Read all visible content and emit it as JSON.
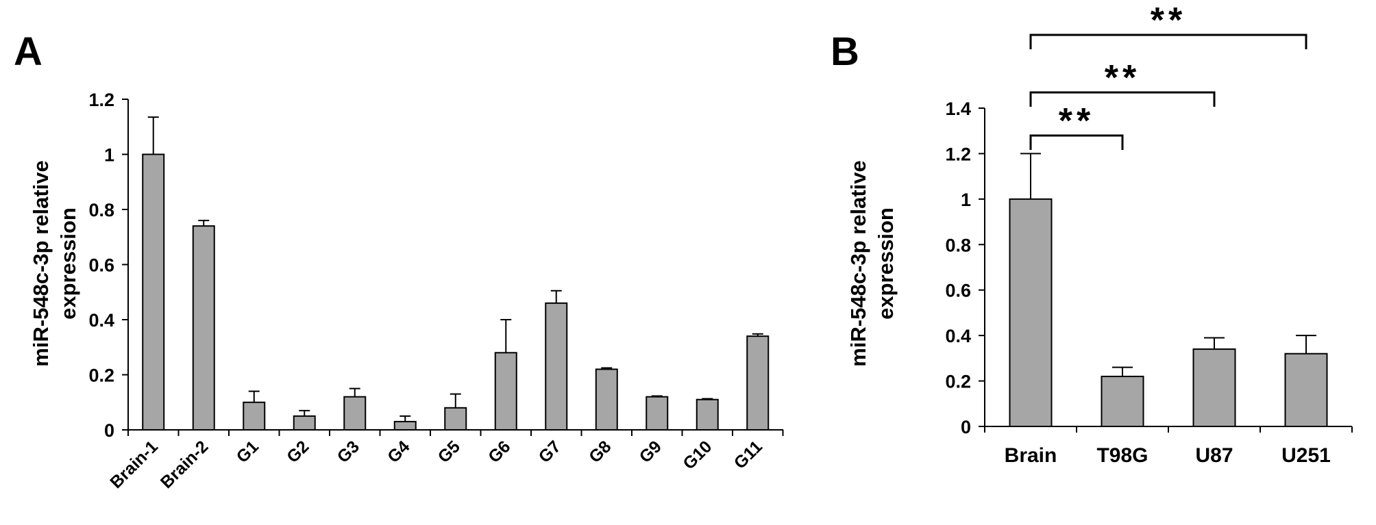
{
  "chart_data": [
    {
      "type": "bar",
      "panel": "A",
      "ylabel": [
        "miR-548c-3p relative",
        "expression"
      ],
      "ylim": [
        0,
        1.2
      ],
      "yticks": [
        "0",
        "0.2",
        "0.4",
        "0.6",
        "0.8",
        "1",
        "1.2"
      ],
      "categories": [
        "Brain-1",
        "Brain-2",
        "G1",
        "G2",
        "G3",
        "G4",
        "G5",
        "G6",
        "G7",
        "G8",
        "G9",
        "G10",
        "G11"
      ],
      "values": [
        1.0,
        0.74,
        0.1,
        0.05,
        0.12,
        0.03,
        0.08,
        0.28,
        0.46,
        0.22,
        0.12,
        0.11,
        0.34
      ],
      "errors": [
        0.135,
        0.02,
        0.04,
        0.02,
        0.03,
        0.02,
        0.05,
        0.12,
        0.045,
        0.005,
        0.003,
        0.003,
        0.008
      ],
      "bar_color": "#a6a6a6",
      "grid": false
    },
    {
      "type": "bar",
      "panel": "B",
      "ylabel": [
        "miR-548c-3p relative",
        "expression"
      ],
      "ylim": [
        0,
        1.4
      ],
      "yticks": [
        "0",
        "0.2",
        "0.4",
        "0.6",
        "0.8",
        "1",
        "1.2",
        "1.4"
      ],
      "categories": [
        "Brain",
        "T98G",
        "U87",
        "U251"
      ],
      "values": [
        1.0,
        0.22,
        0.34,
        0.32
      ],
      "errors": [
        0.2,
        0.04,
        0.05,
        0.08
      ],
      "bar_color": "#a6a6a6",
      "grid": false,
      "significance": [
        {
          "from": "Brain",
          "to": "T98G",
          "label": "**"
        },
        {
          "from": "Brain",
          "to": "U87",
          "label": "**"
        },
        {
          "from": "Brain",
          "to": "U251",
          "label": "**"
        }
      ]
    }
  ]
}
